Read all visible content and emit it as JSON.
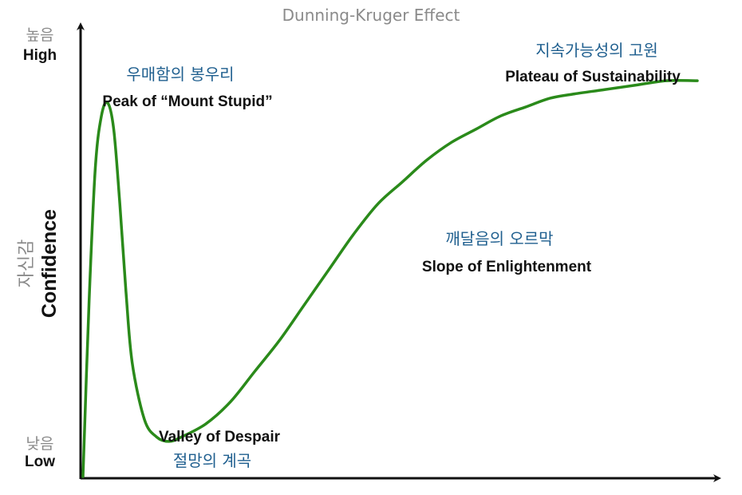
{
  "chart_data": {
    "type": "line",
    "title": "Dunning-Kruger Effect",
    "ylabel": "Confidence",
    "ylabel_ko": "자신감",
    "xlabel": "",
    "y_ticks": [
      {
        "ko": "높음",
        "en": "High"
      },
      {
        "ko": "낮음",
        "en": "Low"
      }
    ],
    "grid": false,
    "colors": {
      "curve": "#2a8a1a",
      "axis": "#111111",
      "korean_annotation": "#1f5f8f",
      "title": "#8a8a8a"
    },
    "series": [
      {
        "x": [
          0,
          0.01,
          0.02,
          0.03,
          0.04,
          0.05,
          0.06,
          0.07,
          0.08,
          0.1,
          0.12,
          0.14,
          0.16,
          0.2,
          0.24,
          0.28,
          0.32,
          0.36,
          0.4,
          0.44,
          0.48,
          0.52,
          0.56,
          0.6,
          0.64,
          0.68,
          0.72,
          0.76,
          0.8,
          0.85,
          0.9,
          0.95,
          1.0
        ],
        "values": [
          0.0,
          0.4,
          0.7,
          0.82,
          0.85,
          0.79,
          0.62,
          0.42,
          0.26,
          0.13,
          0.09,
          0.08,
          0.09,
          0.12,
          0.17,
          0.24,
          0.31,
          0.39,
          0.47,
          0.55,
          0.62,
          0.67,
          0.72,
          0.76,
          0.79,
          0.82,
          0.84,
          0.86,
          0.87,
          0.88,
          0.89,
          0.9,
          0.9
        ]
      }
    ],
    "annotations": [
      {
        "ko": "우매함의 봉우리",
        "en": "Peak of “Mount Stupid”"
      },
      {
        "ko": "절망의 계곡",
        "en": "Valley of Despair"
      },
      {
        "ko": "깨달음의 오르막",
        "en": "Slope of Enlightenment"
      },
      {
        "ko": "지속가능성의 고원",
        "en": "Plateau of Sustainability"
      }
    ]
  }
}
